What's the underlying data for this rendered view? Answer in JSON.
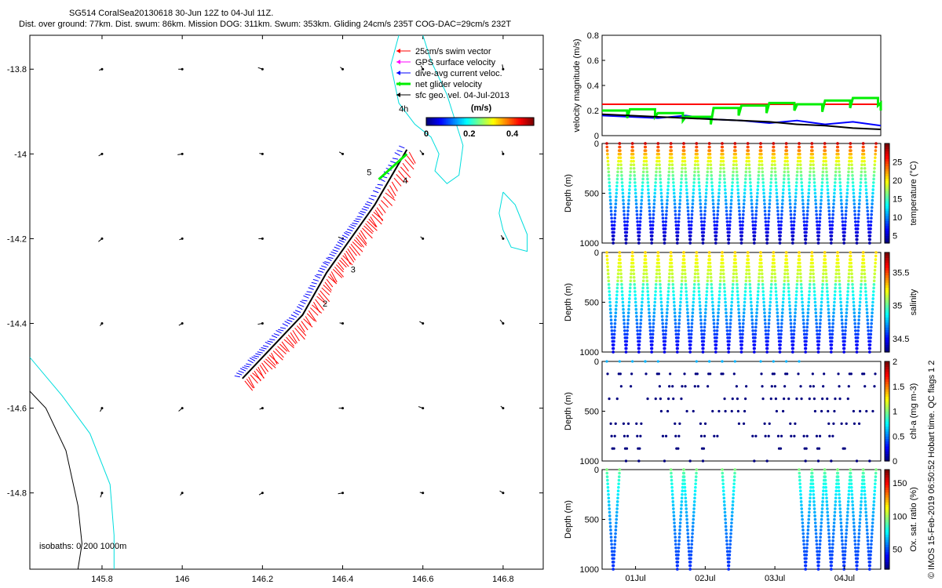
{
  "header": {
    "title": "SG514 CoralSea20130618 30-Jun 12Z to 04-Jul 11Z.",
    "subtitle": "Dist. over ground: 77km. Dist. swum: 86km. Mission DOG: 311km. Swum: 353km. Gliding 24cm/s 235T COG-DAC=29cm/s 232T"
  },
  "credit": "© IMOS 15-Feb-2019 06:50:52 Hobart time. QC flags 1  2",
  "colors": {
    "swim": "#ff0000",
    "gps": "#ff00ff",
    "dac": "#0000ff",
    "net": "#00ee00",
    "geo": "#000000",
    "isobath_200": "#00dddd",
    "isobath_1000": "#000000"
  },
  "map": {
    "xlim": [
      145.62,
      146.9
    ],
    "ylim": [
      -14.98,
      -13.72
    ],
    "xticks": [
      "145.8",
      "146",
      "146.2",
      "146.4",
      "146.6",
      "146.8"
    ],
    "xtick_values": [
      145.8,
      146.0,
      146.2,
      146.4,
      146.6,
      146.8
    ],
    "yticks": [
      "-13.8",
      "-14",
      "-14.2",
      "-14.4",
      "-14.6",
      "-14.8"
    ],
    "ytick_values": [
      -13.8,
      -14.0,
      -14.2,
      -14.4,
      -14.6,
      -14.8
    ],
    "legend": [
      "25cm/s swim vector",
      "GPS surface velocity",
      "dive-avg current veloc.",
      "net glider velocity",
      "sfc geo. vel. 04-Jul-2013"
    ],
    "colorbar_label": "(m/s)",
    "colorbar_ticks": [
      "0",
      "0.2",
      "0.4"
    ],
    "colorbar_tick_values": [
      0,
      0.2,
      0.4
    ],
    "colorbar_range": [
      0,
      0.5
    ],
    "isobaths_label": "isobaths: 0   200  1000m",
    "day_labels": [
      {
        "text": "4h",
        "lon": 146.54,
        "lat": -13.9
      },
      {
        "text": "5",
        "lon": 146.46,
        "lat": -14.05
      },
      {
        "text": "4",
        "lon": 146.55,
        "lat": -14.07
      },
      {
        "text": "3",
        "lon": 146.42,
        "lat": -14.28
      },
      {
        "text": "2",
        "lon": 146.35,
        "lat": -14.36
      }
    ],
    "track": {
      "start": [
        146.15,
        -14.53
      ],
      "end": [
        146.56,
        -13.99
      ]
    }
  },
  "chart_data": [
    {
      "type": "line",
      "ylabel": "velocity magnitude (m/s)",
      "ylim": [
        0,
        0.8
      ],
      "yticks": [
        "0",
        "0.2",
        "0.4",
        "0.6",
        "0.8"
      ],
      "ytick_values": [
        0,
        0.2,
        0.4,
        0.6,
        0.8
      ],
      "x": [
        0,
        0.1,
        0.2,
        0.3,
        0.4,
        0.5,
        0.6,
        0.7,
        0.8,
        0.9,
        1.0
      ],
      "series": [
        {
          "name": "25cm/s swim vector",
          "values": [
            0.25,
            0.25,
            0.25,
            0.25,
            0.25,
            0.25,
            0.25,
            0.25,
            0.25,
            0.25,
            0.25
          ]
        },
        {
          "name": "dive-avg current veloc.",
          "values": [
            0.16,
            0.15,
            0.14,
            0.16,
            0.13,
            0.12,
            0.1,
            0.12,
            0.09,
            0.11,
            0.08
          ]
        },
        {
          "name": "net glider velocity",
          "values": [
            0.2,
            0.21,
            0.18,
            0.15,
            0.22,
            0.24,
            0.26,
            0.25,
            0.28,
            0.3,
            0.26
          ]
        },
        {
          "name": "sfc geo. vel. 04-Jul-2013",
          "values": [
            0.17,
            0.16,
            0.15,
            0.14,
            0.13,
            0.12,
            0.11,
            0.09,
            0.08,
            0.06,
            0.05
          ]
        }
      ]
    },
    {
      "type": "scatter",
      "ylabel": "Depth (m)",
      "clabel": "temperature (°C)",
      "yticks": [
        "0",
        "500",
        "1000"
      ],
      "ytick_values": [
        0,
        500,
        1000
      ],
      "ylim": [
        0,
        1000
      ],
      "cticks": [
        "5",
        "10",
        "15",
        "20",
        "25"
      ],
      "ctick_values": [
        5,
        10,
        15,
        20,
        25
      ],
      "crange": [
        3,
        30
      ],
      "surface": 28,
      "bottom": 4,
      "dives": 21,
      "pattern": "full"
    },
    {
      "type": "scatter",
      "ylabel": "Depth (m)",
      "clabel": "salinity",
      "yticks": [
        "0",
        "500",
        "1000"
      ],
      "ytick_values": [
        0,
        500,
        1000
      ],
      "ylim": [
        0,
        1000
      ],
      "cticks": [
        "34.5",
        "35",
        "35.5"
      ],
      "ctick_values": [
        34.5,
        35,
        35.5
      ],
      "crange": [
        34.3,
        35.8
      ],
      "surface": 35.3,
      "bottom": 34.45,
      "dives": 21,
      "pattern": "salinity"
    },
    {
      "type": "scatter",
      "ylabel": "Depth (m)",
      "clabel": "chl-a (mg m-3)",
      "yticks": [
        "0",
        "500",
        "1000"
      ],
      "ytick_values": [
        0,
        500,
        1000
      ],
      "ylim": [
        0,
        1000
      ],
      "cticks": [
        "0",
        "0.5",
        "1",
        "1.5",
        "2"
      ],
      "ctick_values": [
        0,
        0.5,
        1,
        1.5,
        2
      ],
      "crange": [
        0,
        2
      ],
      "surface": 0.05,
      "bottom": 0.0,
      "dives": 21,
      "pattern": "sparse"
    },
    {
      "type": "scatter",
      "ylabel": "Depth (m)",
      "clabel": "Ox. sat. ratio (%)",
      "yticks": [
        "0",
        "500",
        "1000"
      ],
      "ytick_values": [
        0,
        500,
        1000
      ],
      "ylim": [
        0,
        1000
      ],
      "cticks": [
        "50",
        "100",
        "150"
      ],
      "ctick_values": [
        50,
        100,
        150
      ],
      "crange": [
        20,
        170
      ],
      "surface": 95,
      "bottom": 45,
      "dives": 21,
      "pattern": "oxygen"
    }
  ],
  "time_axis": {
    "xticks": [
      "01Jul",
      "02Jul",
      "03Jul",
      "04Jul"
    ],
    "xtick_values": [
      0.12,
      0.37,
      0.62,
      0.87
    ]
  }
}
